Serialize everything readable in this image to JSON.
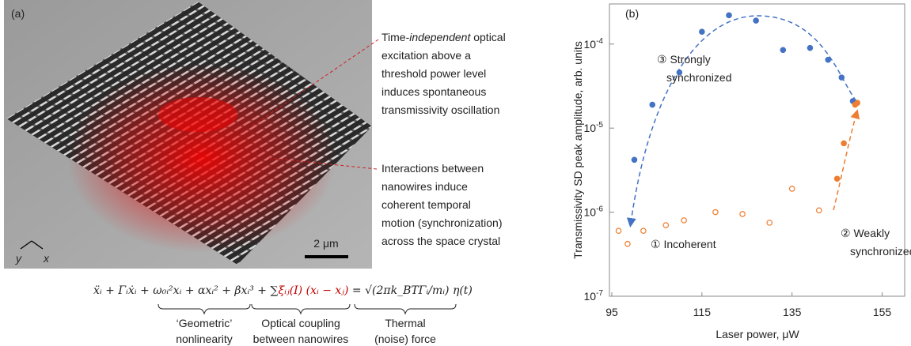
{
  "panel_a": {
    "label": "(a)",
    "annotation_1": {
      "first_line": [
        "Time-",
        "independent",
        " optical"
      ],
      "lines": [
        "excitation above a",
        "threshold power level",
        "induces spontaneous",
        "transmissivity oscillation"
      ]
    },
    "annotation_2": {
      "lines": [
        "Interactions between",
        "nanowires induce",
        "coherent temporal",
        "motion (synchronization)",
        "across the space crystal"
      ]
    },
    "scale_bar": "2 μm",
    "axis_y": "y",
    "axis_x": "x",
    "equation": {
      "parts": [
        "ẍᵢ + Γᵢẋᵢ + ω₀ᵢ²xᵢ + αxᵢ² + βxᵢ³ + ∑",
        "ξᵢⱼ(I) (xᵢ − xⱼ)",
        " = √(2πk_BTΓᵢ/mᵢ) η(t)"
      ],
      "highlight_color": "#c00000"
    },
    "brace_labels": [
      [
        "‘Geometric’",
        "nonlinearity"
      ],
      [
        "Optical coupling",
        "between nanowires"
      ],
      [
        "Thermal",
        "(noise) force"
      ]
    ]
  },
  "chart_data": {
    "type": "scatter",
    "label": "(b)",
    "xlabel": "Laser power, μW",
    "ylabel": "Transmissivity SD peak amplitude, arb. units",
    "xlim": [
      95,
      160
    ],
    "xticks": [
      95,
      115,
      135,
      155
    ],
    "ylim": [
      1e-07,
      0.0003
    ],
    "log_y": true,
    "yticks": [
      {
        "value": 1e-07,
        "label": "10-7"
      },
      {
        "value": 1e-06,
        "label": "10-6"
      },
      {
        "value": 1e-05,
        "label": "10-5"
      },
      {
        "value": 0.0001,
        "label": "10-4"
      }
    ],
    "series": [
      {
        "color": "#4472c4",
        "filled": true,
        "x": [
          100,
          104,
          110,
          115,
          121,
          127,
          133,
          139,
          143,
          146,
          148.5
        ],
        "values": [
          4.2e-06,
          1.9e-05,
          4.6e-05,
          0.00014,
          0.00022,
          0.00019,
          8.5e-05,
          9e-05,
          6.5e-05,
          4e-05,
          2.1e-05
        ]
      },
      {
        "color": "#ed7d31",
        "filled": false,
        "x": [
          96.5,
          98.5,
          102,
          107,
          111,
          118,
          124,
          130,
          135,
          141
        ],
        "values": [
          6e-07,
          4.2e-07,
          6e-07,
          7e-07,
          8e-07,
          1e-06,
          9.5e-07,
          7.5e-07,
          1.9e-06,
          1.05e-06
        ]
      },
      {
        "color": "#ed7d31",
        "filled": true,
        "x": [
          145,
          146.5,
          149,
          149.5
        ],
        "values": [
          2.5e-06,
          6.6e-06,
          1.9e-05,
          2e-05
        ]
      }
    ],
    "annotations": [
      [
        "③ Strongly",
        "synchronized"
      ],
      [
        "① Incoherent"
      ],
      [
        "② Weakly",
        "synchronized"
      ]
    ]
  }
}
